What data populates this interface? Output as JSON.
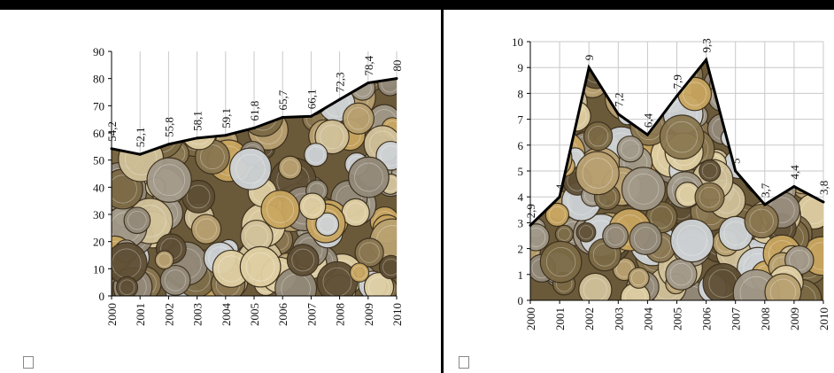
{
  "chart_data": [
    {
      "type": "area",
      "title": "",
      "xlabel": "",
      "ylabel": "",
      "ylim": [
        0,
        90
      ],
      "yticks": [
        "0",
        "10",
        "20",
        "30",
        "40",
        "50",
        "60",
        "70",
        "80",
        "90"
      ],
      "grid": "vertical",
      "fill": "coins-photo",
      "x": [
        "2000",
        "2001",
        "2002",
        "2003",
        "2004",
        "2005",
        "2006",
        "2007",
        "2008",
        "2009",
        "2010"
      ],
      "values": [
        54.2,
        52.1,
        55.8,
        58.1,
        59.1,
        61.8,
        65.7,
        66.1,
        72.3,
        78.4,
        80
      ],
      "value_labels": [
        "54,2",
        "52,1",
        "55,8",
        "58,1",
        "59,1",
        "61,8",
        "65,7",
        "66,1",
        "72,3",
        "78,4",
        "80"
      ]
    },
    {
      "type": "area",
      "title": "",
      "xlabel": "",
      "ylabel": "",
      "ylim": [
        0,
        10
      ],
      "yticks": [
        "0",
        "1",
        "2",
        "3",
        "4",
        "5",
        "6",
        "7",
        "8",
        "9",
        "10"
      ],
      "grid": "both",
      "fill": "coins-photo",
      "x": [
        "2000",
        "2001",
        "2002",
        "2003",
        "2004",
        "2005",
        "2006",
        "2007",
        "2008",
        "2009",
        "2010"
      ],
      "values": [
        2.9,
        4,
        9,
        7.2,
        6.4,
        7.9,
        9.3,
        5,
        3.7,
        4.4,
        3.8
      ],
      "value_labels": [
        "2,9",
        "4",
        "9",
        "7,2",
        "6,4",
        "7,9",
        "9,3",
        "5",
        "3,7",
        "4,4",
        "3,8"
      ]
    }
  ],
  "placeholders": [
    "placeholder-icon",
    "placeholder-icon"
  ]
}
